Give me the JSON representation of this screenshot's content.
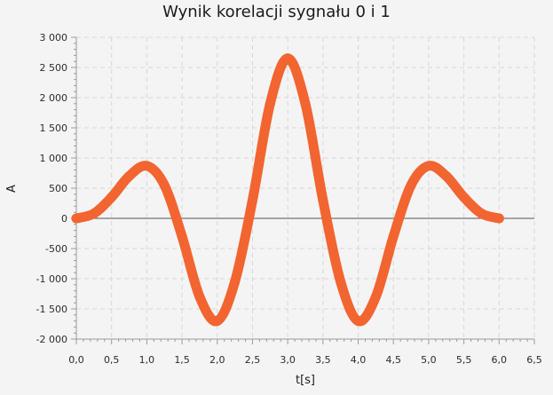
{
  "chart_data": {
    "type": "scatter",
    "title": "Wynik korelacji sygnału 0 i 1",
    "xlabel": "t[s]",
    "ylabel": "A",
    "xlim": [
      0.0,
      6.5
    ],
    "ylim": [
      -2000,
      3000
    ],
    "x_ticks": [
      "0,0",
      "0,5",
      "1,0",
      "1,5",
      "2,0",
      "2,5",
      "3,0",
      "3,5",
      "4,0",
      "4,5",
      "5,0",
      "5,5",
      "6,0",
      "6,5"
    ],
    "y_ticks": [
      "3 000",
      "2 500",
      "2 000",
      "1 500",
      "1 000",
      "500",
      "0",
      "-500",
      "-1 000",
      "-1 500",
      "-2 000"
    ],
    "grid": true,
    "legend": "none",
    "color": "#f26430",
    "series": [
      {
        "x": [
          0.0,
          0.25,
          0.5,
          0.75,
          1.0,
          1.25,
          1.5,
          1.75,
          2.0,
          2.25,
          2.5,
          2.75,
          3.0,
          3.25,
          3.5,
          3.75,
          4.0,
          4.25,
          4.5,
          4.75,
          5.0,
          5.25,
          5.5,
          5.75,
          6.0
        ],
        "y": [
          0,
          80,
          350,
          700,
          870,
          550,
          -300,
          -1300,
          -1700,
          -1050,
          300,
          1900,
          2650,
          1900,
          300,
          -1050,
          -1700,
          -1300,
          -300,
          550,
          870,
          700,
          350,
          80,
          0
        ]
      }
    ]
  }
}
